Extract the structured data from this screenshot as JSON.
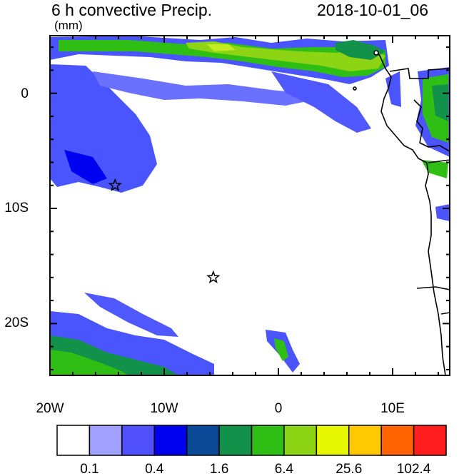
{
  "header": {
    "title": "6 h convective Precip.",
    "units": "(mm)",
    "datetime": "2018-10-01_06"
  },
  "map": {
    "lon_range": [
      -20,
      15
    ],
    "lat_range": [
      -24.5,
      5
    ],
    "lon_tick_labels": [
      "20W",
      "10W",
      "0",
      "10E"
    ],
    "lat_tick_labels": [
      "0",
      "10S",
      "20S"
    ],
    "station_markers": [
      {
        "name": "star-marker",
        "lon": -14.3,
        "lat": -8.0
      },
      {
        "name": "star-marker",
        "lon": -5.7,
        "lat": -16.0
      }
    ]
  },
  "colorbar": {
    "colors": [
      "#ffffff",
      "#a0a0ff",
      "#5050ff",
      "#0000f0",
      "#0a4a96",
      "#12914a",
      "#2fbf14",
      "#8cd414",
      "#e6f500",
      "#ffc800",
      "#ff6400",
      "#ff1e1e"
    ],
    "labels": [
      "0.1",
      "0.4",
      "1.6",
      "6.4",
      "25.6",
      "102.4"
    ]
  }
}
